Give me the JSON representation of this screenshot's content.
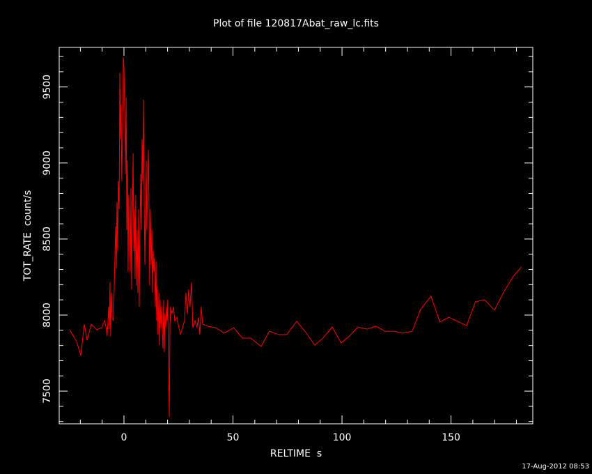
{
  "chart_data": {
    "type": "line",
    "title": "Plot of file 120817Abat_raw_lc.fits",
    "x_label": "RELTIME  s",
    "y_label": "TOT_RATE  count/s",
    "footer": "17-Aug-2012 08:53",
    "color": "#ff0000",
    "xlim": [
      -29.7,
      187.5
    ],
    "ylim": [
      7285,
      9760
    ],
    "xticks": [
      0,
      50,
      100,
      150
    ],
    "yticks": [
      7500,
      8000,
      8500,
      9000,
      9500
    ],
    "xticks_minor": [
      -20,
      -10,
      10,
      20,
      30,
      40,
      60,
      70,
      80,
      90,
      110,
      120,
      130,
      140,
      160,
      170,
      180
    ],
    "yticks_minor": [
      7300,
      7400,
      7600,
      7700,
      7800,
      7900,
      8100,
      8200,
      8300,
      8400,
      8600,
      8700,
      8800,
      8900,
      9100,
      9200,
      9300,
      9400,
      9600,
      9700
    ],
    "x": [
      -24.9,
      -21.7,
      -19.8,
      -18.2,
      -16.9,
      -15.0,
      -12.5,
      -10.2,
      -8.9,
      -8.3,
      -7.7,
      -7.0,
      -6.7,
      -6.4,
      -6.1,
      -5.7,
      -5.4,
      -4.8,
      -4.2,
      -3.8,
      -3.5,
      -3.2,
      -2.9,
      -2.6,
      -2.2,
      -1.9,
      -1.6,
      -1.3,
      -1.0,
      -0.6,
      -0.3,
      0.0,
      0.3,
      0.6,
      1.0,
      1.3,
      1.6,
      1.9,
      2.2,
      2.6,
      2.9,
      3.2,
      3.5,
      3.8,
      4.2,
      4.5,
      4.8,
      5.1,
      5.4,
      5.7,
      6.1,
      6.4,
      6.7,
      7.0,
      7.3,
      7.7,
      8.0,
      8.3,
      8.6,
      8.9,
      9.3,
      9.6,
      9.9,
      10.2,
      10.5,
      10.9,
      11.2,
      11.5,
      11.8,
      12.1,
      12.5,
      12.8,
      13.1,
      13.4,
      13.7,
      14.0,
      14.4,
      14.7,
      15.0,
      15.3,
      15.6,
      16.0,
      16.3,
      16.6,
      16.9,
      17.2,
      17.6,
      17.9,
      18.2,
      18.5,
      18.8,
      19.2,
      19.5,
      19.8,
      20.1,
      20.4,
      20.8,
      21.1,
      21.4,
      22.0,
      22.7,
      23.3,
      24.3,
      25.2,
      25.9,
      26.8,
      27.8,
      28.4,
      29.1,
      29.7,
      30.3,
      31.0,
      31.6,
      32.6,
      33.5,
      34.2,
      34.8,
      35.4,
      36.1,
      38.3,
      42.1,
      46.0,
      50.4,
      54.3,
      58.1,
      62.9,
      66.7,
      70.9,
      74.7,
      79.2,
      83.0,
      87.5,
      91.3,
      95.5,
      99.6,
      103.4,
      107.3,
      111.4,
      115.6,
      119.7,
      123.9,
      128.0,
      132.2,
      136.0,
      140.8,
      144.9,
      149.0,
      157.1,
      161.2,
      165.4,
      169.9,
      174.0,
      178.2,
      182.3
    ],
    "values": [
      7904,
      7826,
      7734,
      7940,
      7835,
      7940,
      7904,
      7917,
      7963,
      7927,
      7862,
      8055,
      7908,
      8216,
      7862,
      8147,
      7986,
      7963,
      8353,
      8583,
      8307,
      8743,
      8422,
      8881,
      8697,
      9592,
      9156,
      9385,
      8881,
      9248,
      9697,
      9638,
      9385,
      8927,
      9431,
      8560,
      9018,
      8284,
      8789,
      8606,
      8284,
      8835,
      8170,
      8560,
      9064,
      8422,
      8697,
      8239,
      8789,
      8193,
      8560,
      8147,
      8697,
      8055,
      8514,
      8927,
      8560,
      9156,
      8881,
      9417,
      8697,
      8330,
      8789,
      9018,
      8560,
      8881,
      9087,
      8697,
      8193,
      8697,
      8330,
      8560,
      8147,
      8422,
      8284,
      8376,
      8055,
      8353,
      7963,
      8193,
      7872,
      8147,
      7803,
      8101,
      7917,
      8055,
      7872,
      7780,
      8101,
      7757,
      8009,
      7917,
      8055,
      7963,
      8101,
      7711,
      7330,
      7917,
      8055,
      8009,
      8055,
      7963,
      7986,
      7917,
      7872,
      7917,
      7963,
      8147,
      8009,
      8170,
      8055,
      8216,
      7917,
      7963,
      7917,
      7986,
      7872,
      8055,
      7940,
      7927,
      7917,
      7881,
      7917,
      7849,
      7849,
      7794,
      7894,
      7872,
      7872,
      7959,
      7894,
      7803,
      7849,
      7922,
      7817,
      7862,
      7922,
      7908,
      7927,
      7894,
      7894,
      7881,
      7894,
      8037,
      8124,
      7954,
      7986,
      7931,
      8087,
      8101,
      8032,
      8147,
      8248,
      8317
    ]
  }
}
